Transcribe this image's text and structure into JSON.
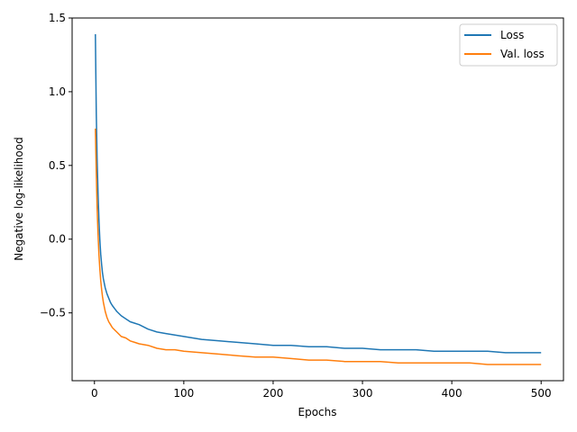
{
  "chart_data": {
    "type": "line",
    "xlabel": "Epochs",
    "ylabel": "Negative log-likelihood",
    "xlim": [
      -25,
      525
    ],
    "ylim": [
      -0.96,
      1.5
    ],
    "xticks": [
      0,
      100,
      200,
      300,
      400,
      500
    ],
    "yticks": [
      -0.5,
      0.0,
      0.5,
      1.0,
      1.5
    ],
    "xtick_labels": [
      "0",
      "100",
      "200",
      "300",
      "400",
      "500"
    ],
    "ytick_labels": [
      "−0.5",
      "0.0",
      "0.5",
      "1.0",
      "1.5"
    ],
    "grid": false,
    "legend_position": "top-right",
    "series": [
      {
        "name": "Loss",
        "color": "#1f77b4",
        "x": [
          1,
          2,
          3,
          4,
          5,
          6,
          7,
          8,
          9,
          10,
          12,
          14,
          16,
          18,
          20,
          25,
          30,
          35,
          40,
          45,
          50,
          60,
          70,
          80,
          90,
          100,
          120,
          140,
          160,
          180,
          200,
          220,
          240,
          260,
          280,
          300,
          320,
          340,
          360,
          380,
          400,
          420,
          440,
          460,
          480,
          500
        ],
        "y": [
          1.39,
          0.85,
          0.55,
          0.32,
          0.14,
          0.0,
          -0.1,
          -0.17,
          -0.23,
          -0.27,
          -0.33,
          -0.37,
          -0.4,
          -0.43,
          -0.45,
          -0.49,
          -0.52,
          -0.54,
          -0.56,
          -0.57,
          -0.58,
          -0.61,
          -0.63,
          -0.64,
          -0.65,
          -0.66,
          -0.68,
          -0.69,
          -0.7,
          -0.71,
          -0.72,
          -0.72,
          -0.73,
          -0.73,
          -0.74,
          -0.74,
          -0.75,
          -0.75,
          -0.75,
          -0.76,
          -0.76,
          -0.76,
          -0.76,
          -0.77,
          -0.77,
          -0.77
        ]
      },
      {
        "name": "Val. loss",
        "color": "#ff7f0e",
        "x": [
          1,
          2,
          3,
          4,
          5,
          6,
          7,
          8,
          9,
          10,
          12,
          14,
          16,
          18,
          20,
          25,
          30,
          35,
          40,
          45,
          50,
          60,
          70,
          80,
          90,
          100,
          120,
          140,
          160,
          180,
          200,
          220,
          240,
          260,
          280,
          300,
          320,
          340,
          360,
          380,
          400,
          420,
          440,
          460,
          480,
          500
        ],
        "y": [
          0.75,
          0.45,
          0.22,
          0.04,
          -0.1,
          -0.2,
          -0.28,
          -0.34,
          -0.39,
          -0.43,
          -0.49,
          -0.53,
          -0.56,
          -0.58,
          -0.6,
          -0.63,
          -0.66,
          -0.67,
          -0.69,
          -0.7,
          -0.71,
          -0.72,
          -0.74,
          -0.75,
          -0.75,
          -0.76,
          -0.77,
          -0.78,
          -0.79,
          -0.8,
          -0.8,
          -0.81,
          -0.82,
          -0.82,
          -0.83,
          -0.83,
          -0.83,
          -0.84,
          -0.84,
          -0.84,
          -0.84,
          -0.84,
          -0.85,
          -0.85,
          -0.85,
          -0.85
        ]
      }
    ]
  }
}
